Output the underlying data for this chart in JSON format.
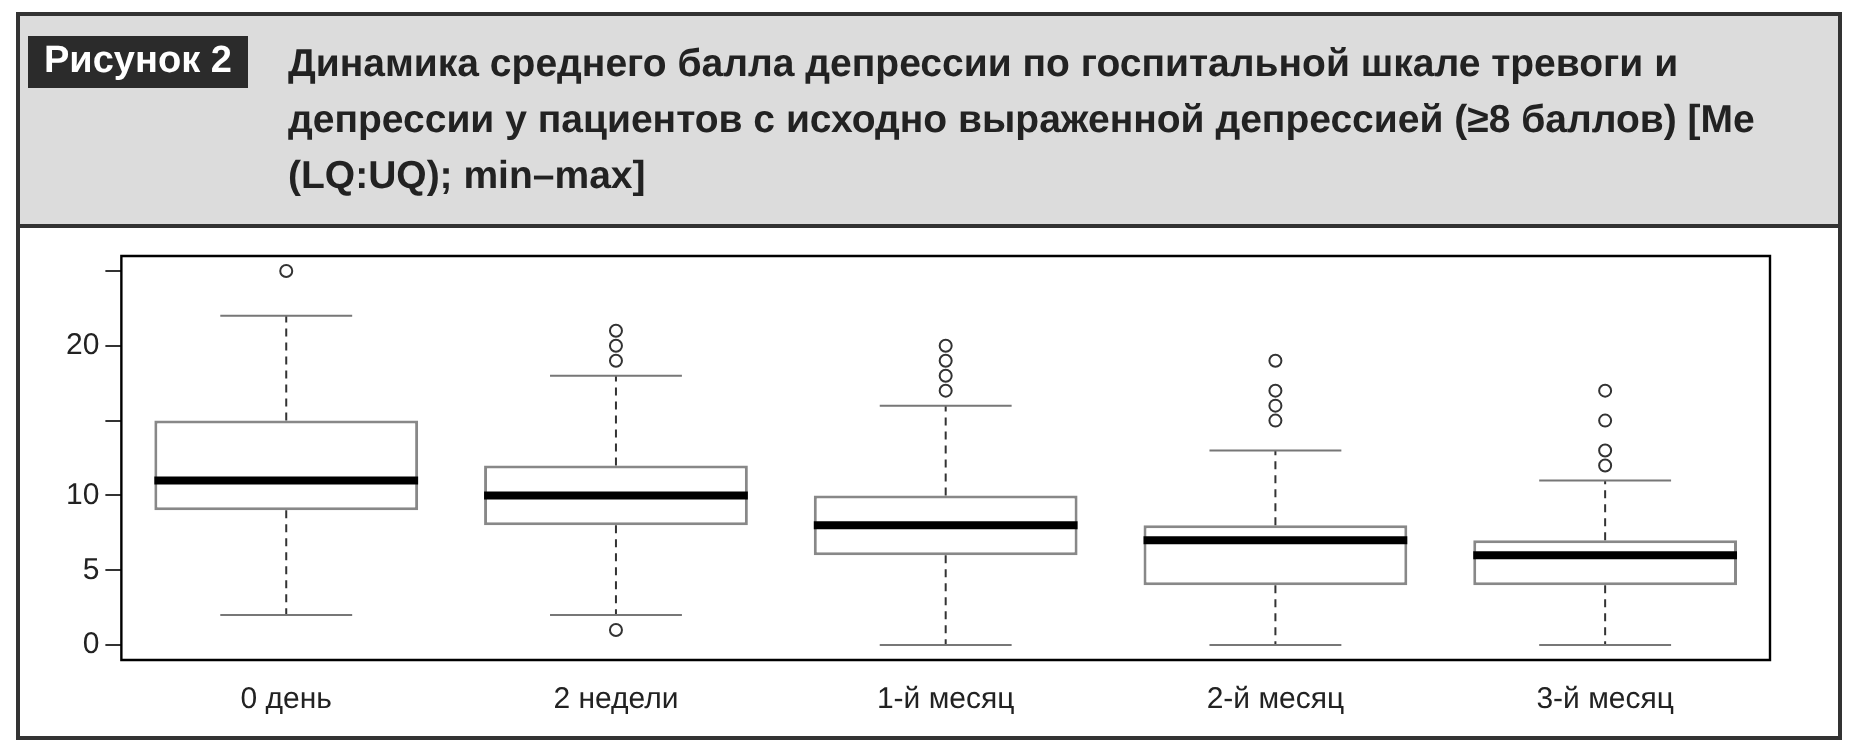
{
  "chart_data": {
    "type": "box",
    "title": "Динамика среднего балла депрессии по госпитальной шкале тревоги и депрессии у пациентов с исходно выраженной депрессией (≥8 баллов) [Me (LQ:UQ); min–max]",
    "annotations": [
      "Рисунок 2"
    ],
    "categories": [
      "0 день",
      "2 недели",
      "1-й месяц",
      "2-й месяц",
      "3-й месяц"
    ],
    "boxes": [
      {
        "low": 2,
        "q1": 9,
        "median": 11,
        "q3": 15,
        "high": 22,
        "outliers": [
          25
        ]
      },
      {
        "low": 2,
        "q1": 8,
        "median": 10,
        "q3": 12,
        "high": 18,
        "outliers": [
          21,
          20,
          19,
          1
        ]
      },
      {
        "low": 0,
        "q1": 6,
        "median": 8,
        "q3": 10,
        "high": 16,
        "outliers": [
          20,
          19,
          18,
          17
        ]
      },
      {
        "low": 0,
        "q1": 4,
        "median": 7,
        "q3": 8,
        "high": 13,
        "outliers": [
          19,
          17,
          16,
          15
        ]
      },
      {
        "low": 0,
        "q1": 4,
        "median": 6,
        "q3": 7,
        "high": 11,
        "outliers": [
          17,
          15,
          13,
          12
        ]
      }
    ],
    "ylim": [
      -1,
      26
    ],
    "yticks": [
      0,
      5,
      10,
      {
        "value": 15,
        "label": null
      },
      20,
      {
        "value": 25,
        "label": null
      }
    ]
  }
}
